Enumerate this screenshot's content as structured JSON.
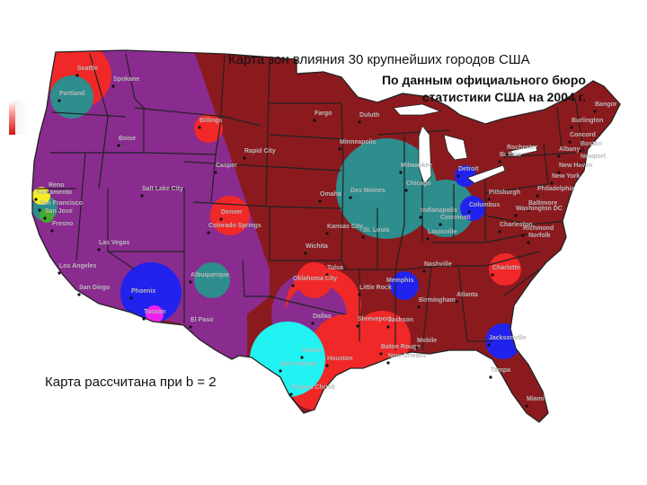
{
  "title": "Карта зон влияния 30 крупнейших городов США",
  "subtitle_line1": "По данным официального бюро",
  "subtitle_line2": "статистики США на 2004 г.",
  "note": "Карта рассчитана при b = 2",
  "colors": {
    "background_region": "#8b1a1e",
    "purple_zone": "#8a2b8f",
    "teal_zone": "#2e8d8d",
    "red_zone": "#f02828",
    "blue_zone": "#2222ee",
    "cyan_zone": "#22f2f2",
    "magenta_zone": "#ee22ee",
    "yellow_zone": "#f5ee20",
    "green_zone": "#44a832",
    "state_border": "#222222",
    "city_label": "#b9b9b9"
  },
  "cities": [
    {
      "name": "Seattle",
      "color": "red"
    },
    {
      "name": "Spokane"
    },
    {
      "name": "Portland",
      "color": "teal"
    },
    {
      "name": "Billings"
    },
    {
      "name": "Boise"
    },
    {
      "name": "Rapid City"
    },
    {
      "name": "Casper"
    },
    {
      "name": "Reno"
    },
    {
      "name": "Salt Lake City"
    },
    {
      "name": "Sacramento",
      "color": "yellow"
    },
    {
      "name": "San Francisco",
      "color": "teal"
    },
    {
      "name": "San Jose",
      "color": "green"
    },
    {
      "name": "Fresno"
    },
    {
      "name": "Las Vegas"
    },
    {
      "name": "Los Angeles"
    },
    {
      "name": "San Diego"
    },
    {
      "name": "Phoenix",
      "color": "blue"
    },
    {
      "name": "Tucson",
      "color": "magenta"
    },
    {
      "name": "Albuquerque",
      "color": "teal"
    },
    {
      "name": "El Paso"
    },
    {
      "name": "Denver",
      "color": "red"
    },
    {
      "name": "Colorado Springs",
      "color": "red"
    },
    {
      "name": "Fargo"
    },
    {
      "name": "Duluth"
    },
    {
      "name": "Minneapolis",
      "color": "teal"
    },
    {
      "name": "Omaha"
    },
    {
      "name": "Des Moines"
    },
    {
      "name": "Wichita"
    },
    {
      "name": "Kansas City"
    },
    {
      "name": "Tulsa",
      "color": "red"
    },
    {
      "name": "Oklahoma City",
      "color": "red"
    },
    {
      "name": "Dallas",
      "color": "purple"
    },
    {
      "name": "Austin",
      "color": "cyan"
    },
    {
      "name": "San Antonio",
      "color": "cyan"
    },
    {
      "name": "Corpus Christi"
    },
    {
      "name": "Houston",
      "color": "red"
    },
    {
      "name": "Shreveport"
    },
    {
      "name": "Milwaukee",
      "color": "teal"
    },
    {
      "name": "Chicago",
      "color": "teal"
    },
    {
      "name": "Detroit",
      "color": "blue"
    },
    {
      "name": "Indianapolis",
      "color": "teal"
    },
    {
      "name": "Columbus",
      "color": "blue"
    },
    {
      "name": "Cincinnati",
      "color": "teal"
    },
    {
      "name": "Louisville"
    },
    {
      "name": "St. Louis"
    },
    {
      "name": "Nashville"
    },
    {
      "name": "Memphis",
      "color": "blue"
    },
    {
      "name": "Little Rock"
    },
    {
      "name": "Jackson"
    },
    {
      "name": "Birmingham"
    },
    {
      "name": "Atlanta"
    },
    {
      "name": "Baton Rouge"
    },
    {
      "name": "New Orleans"
    },
    {
      "name": "Mobile"
    },
    {
      "name": "Jacksonville",
      "color": "blue"
    },
    {
      "name": "Tampa"
    },
    {
      "name": "Miami"
    },
    {
      "name": "Charlotte",
      "color": "red"
    },
    {
      "name": "Charleston"
    },
    {
      "name": "Richmond"
    },
    {
      "name": "Norfolk"
    },
    {
      "name": "Pittsburgh"
    },
    {
      "name": "Philadelphia"
    },
    {
      "name": "Baltimore"
    },
    {
      "name": "Washington DC"
    },
    {
      "name": "New York"
    },
    {
      "name": "Buffalo"
    },
    {
      "name": "Rochester"
    },
    {
      "name": "Albany"
    },
    {
      "name": "Burlington"
    },
    {
      "name": "Concord"
    },
    {
      "name": "Boston"
    },
    {
      "name": "Newport"
    },
    {
      "name": "New Haven"
    },
    {
      "name": "Bangor"
    }
  ]
}
